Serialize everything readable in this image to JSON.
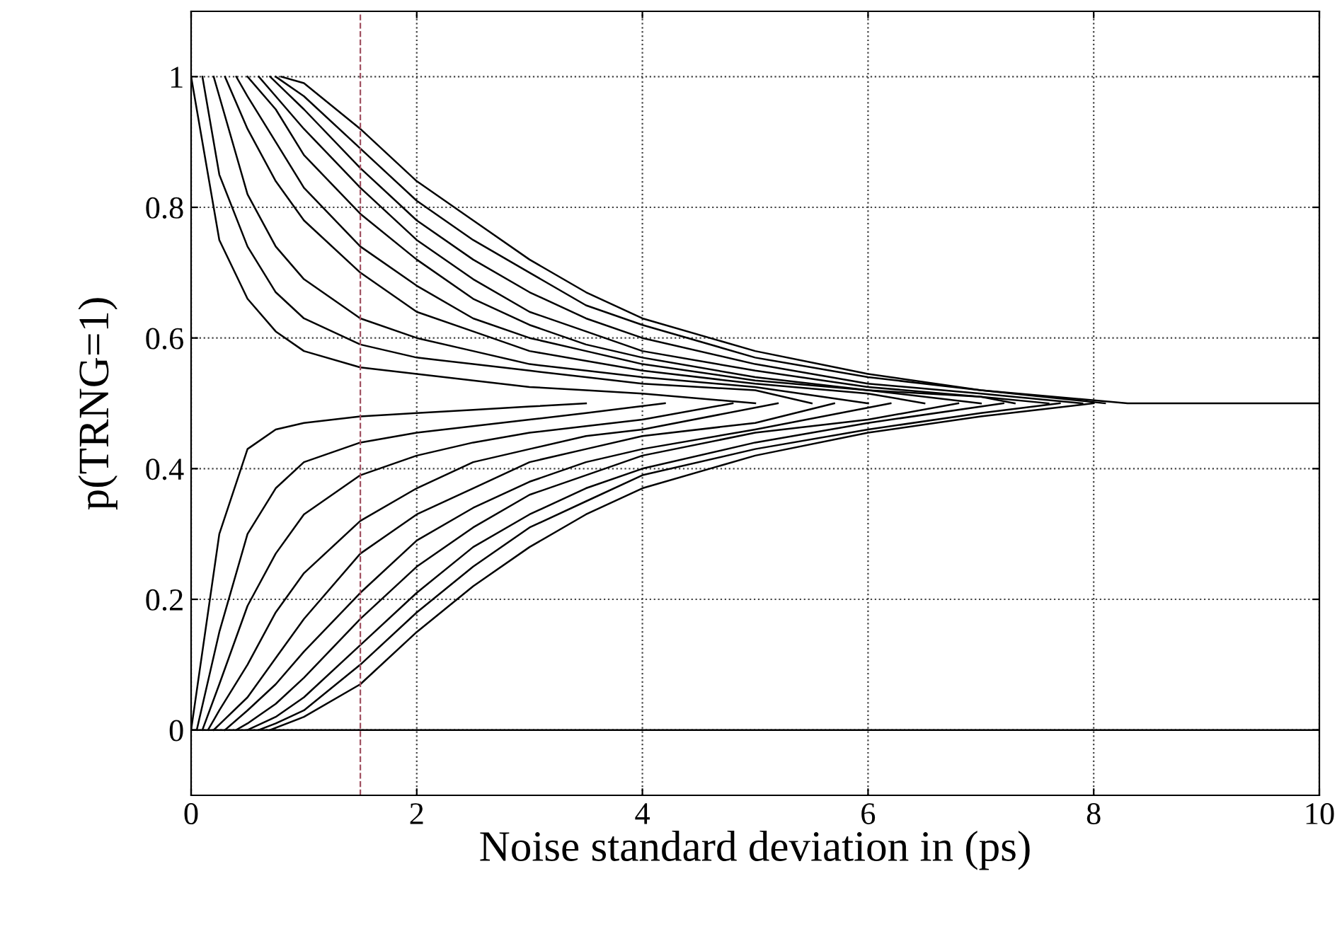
{
  "chart_data": {
    "type": "line",
    "xlabel": "Noise standard deviation in (ps)",
    "ylabel": "p(TRNG=1)",
    "series": [
      {
        "color": "#000000",
        "x": [
          0,
          0.25,
          0.5,
          0.75,
          1,
          1.5,
          2,
          2.5,
          3,
          3.5,
          4,
          5
        ],
        "values": [
          1,
          0.75,
          0.66,
          0.61,
          0.58,
          0.555,
          0.545,
          0.535,
          0.525,
          0.52,
          0.515,
          0.5
        ]
      },
      {
        "color": "#000000",
        "x": [
          0.1,
          0.25,
          0.5,
          0.75,
          1,
          1.5,
          2,
          2.5,
          3,
          3.5,
          4,
          5,
          5.5
        ],
        "values": [
          1,
          0.85,
          0.74,
          0.67,
          0.63,
          0.59,
          0.57,
          0.56,
          0.55,
          0.54,
          0.53,
          0.52,
          0.5
        ]
      },
      {
        "color": "#000000",
        "x": [
          0.2,
          0.5,
          0.75,
          1,
          1.5,
          2,
          2.5,
          3,
          3.5,
          4,
          5,
          6
        ],
        "values": [
          1,
          0.82,
          0.74,
          0.69,
          0.63,
          0.6,
          0.58,
          0.56,
          0.55,
          0.54,
          0.525,
          0.5
        ]
      },
      {
        "color": "#000000",
        "x": [
          0.3,
          0.5,
          0.75,
          1,
          1.5,
          2,
          2.5,
          3,
          3.5,
          4,
          5,
          6,
          6.5
        ],
        "values": [
          1,
          0.92,
          0.84,
          0.78,
          0.7,
          0.64,
          0.61,
          0.58,
          0.565,
          0.55,
          0.53,
          0.515,
          0.5
        ]
      },
      {
        "color": "#000000",
        "x": [
          0.4,
          0.5,
          0.75,
          1,
          1.5,
          2,
          2.5,
          3,
          3.5,
          4,
          5,
          6,
          7
        ],
        "values": [
          1,
          0.97,
          0.9,
          0.83,
          0.74,
          0.68,
          0.63,
          0.6,
          0.58,
          0.56,
          0.535,
          0.52,
          0.5
        ]
      },
      {
        "color": "#000000",
        "x": [
          0.5,
          0.75,
          1,
          1.5,
          2,
          2.5,
          3,
          3.5,
          4,
          5,
          6,
          7,
          7.3
        ],
        "values": [
          1,
          0.95,
          0.88,
          0.79,
          0.72,
          0.66,
          0.62,
          0.59,
          0.57,
          0.54,
          0.52,
          0.51,
          0.5
        ]
      },
      {
        "color": "#000000",
        "x": [
          0.6,
          0.75,
          1,
          1.5,
          2,
          2.5,
          3,
          3.5,
          4,
          5,
          6,
          7,
          7.6
        ],
        "values": [
          1,
          0.97,
          0.92,
          0.83,
          0.75,
          0.69,
          0.64,
          0.61,
          0.58,
          0.55,
          0.525,
          0.51,
          0.5
        ]
      },
      {
        "color": "#000000",
        "x": [
          0.7,
          1,
          1.5,
          2,
          2.5,
          3,
          3.5,
          4,
          5,
          6,
          7,
          7.9
        ],
        "values": [
          1,
          0.95,
          0.86,
          0.78,
          0.72,
          0.67,
          0.63,
          0.6,
          0.56,
          0.53,
          0.515,
          0.5
        ]
      },
      {
        "color": "#000000",
        "x": [
          0.75,
          1,
          1.5,
          2,
          2.5,
          3,
          3.5,
          4,
          5,
          6,
          7,
          8.1
        ],
        "values": [
          1,
          0.97,
          0.89,
          0.81,
          0.75,
          0.7,
          0.65,
          0.62,
          0.57,
          0.54,
          0.52,
          0.5
        ]
      },
      {
        "color": "#000000",
        "x": [
          0.8,
          1,
          1.5,
          2,
          2.5,
          3,
          3.5,
          4,
          5,
          6,
          7,
          8.3,
          10
        ],
        "values": [
          1,
          0.99,
          0.92,
          0.84,
          0.78,
          0.72,
          0.67,
          0.63,
          0.58,
          0.545,
          0.52,
          0.5,
          0.5
        ]
      },
      {
        "color": "#000000",
        "x": [
          0,
          0.25,
          0.5,
          0.75,
          1,
          1.5,
          2,
          2.5,
          3,
          3.5
        ],
        "values": [
          0,
          0.3,
          0.43,
          0.46,
          0.47,
          0.48,
          0.485,
          0.49,
          0.495,
          0.5
        ]
      },
      {
        "color": "#000000",
        "x": [
          0.05,
          0.25,
          0.5,
          0.75,
          1,
          1.5,
          2,
          2.5,
          3,
          3.5,
          4.2
        ],
        "values": [
          0,
          0.15,
          0.3,
          0.37,
          0.41,
          0.44,
          0.455,
          0.465,
          0.475,
          0.485,
          0.5
        ]
      },
      {
        "color": "#000000",
        "x": [
          0.1,
          0.25,
          0.5,
          0.75,
          1,
          1.5,
          2,
          2.5,
          3,
          3.5,
          4,
          4.8
        ],
        "values": [
          0,
          0.07,
          0.19,
          0.27,
          0.33,
          0.39,
          0.42,
          0.44,
          0.455,
          0.465,
          0.475,
          0.5
        ]
      },
      {
        "color": "#000000",
        "x": [
          0.15,
          0.25,
          0.5,
          0.75,
          1,
          1.5,
          2,
          2.5,
          3,
          3.5,
          4,
          5.2
        ],
        "values": [
          0,
          0.03,
          0.1,
          0.18,
          0.24,
          0.32,
          0.37,
          0.41,
          0.43,
          0.45,
          0.46,
          0.5
        ]
      },
      {
        "color": "#000000",
        "x": [
          0.2,
          0.5,
          0.75,
          1,
          1.5,
          2,
          2.5,
          3,
          3.5,
          4,
          5,
          5.7
        ],
        "values": [
          0,
          0.05,
          0.11,
          0.17,
          0.27,
          0.33,
          0.37,
          0.41,
          0.43,
          0.45,
          0.47,
          0.5
        ]
      },
      {
        "color": "#000000",
        "x": [
          0.3,
          0.5,
          0.75,
          1,
          1.5,
          2,
          2.5,
          3,
          3.5,
          4,
          5,
          6.2
        ],
        "values": [
          0,
          0.03,
          0.07,
          0.12,
          0.21,
          0.29,
          0.34,
          0.38,
          0.41,
          0.43,
          0.46,
          0.5
        ]
      },
      {
        "color": "#000000",
        "x": [
          0.4,
          0.5,
          0.75,
          1,
          1.5,
          2,
          2.5,
          3,
          3.5,
          4,
          5,
          6,
          6.8
        ],
        "values": [
          0,
          0.01,
          0.04,
          0.08,
          0.17,
          0.25,
          0.31,
          0.36,
          0.39,
          0.42,
          0.455,
          0.475,
          0.5
        ]
      },
      {
        "color": "#000000",
        "x": [
          0.5,
          0.75,
          1,
          1.5,
          2,
          2.5,
          3,
          3.5,
          4,
          5,
          6,
          7.2
        ],
        "values": [
          0,
          0.02,
          0.05,
          0.13,
          0.21,
          0.28,
          0.33,
          0.37,
          0.4,
          0.44,
          0.47,
          0.5
        ]
      },
      {
        "color": "#000000",
        "x": [
          0.6,
          0.75,
          1,
          1.5,
          2,
          2.5,
          3,
          3.5,
          4,
          5,
          6,
          7,
          7.7
        ],
        "values": [
          0,
          0.01,
          0.03,
          0.1,
          0.18,
          0.25,
          0.31,
          0.35,
          0.39,
          0.43,
          0.46,
          0.485,
          0.5
        ]
      },
      {
        "color": "#000000",
        "x": [
          0.7,
          1,
          1.5,
          2,
          2.5,
          3,
          3.5,
          4,
          5,
          6,
          7,
          8
        ],
        "values": [
          0,
          0.02,
          0.07,
          0.15,
          0.22,
          0.28,
          0.33,
          0.37,
          0.42,
          0.455,
          0.48,
          0.5
        ]
      },
      {
        "color": "#000000",
        "x": [
          0,
          10
        ],
        "values": [
          0,
          0
        ]
      }
    ],
    "xlim": [
      0,
      10
    ],
    "ylim": [
      -0.1,
      1.1
    ],
    "xticks": [
      0,
      2,
      4,
      6,
      8,
      10
    ],
    "yticks": [
      0,
      0.2,
      0.4,
      0.6,
      0.8,
      1
    ],
    "grid": true,
    "marker": "none",
    "line_style": "solid",
    "ref_lines": [
      {
        "axis": "x",
        "value": 1.5,
        "label": null,
        "color": "#a05060",
        "line_style": "dashed"
      }
    ]
  }
}
